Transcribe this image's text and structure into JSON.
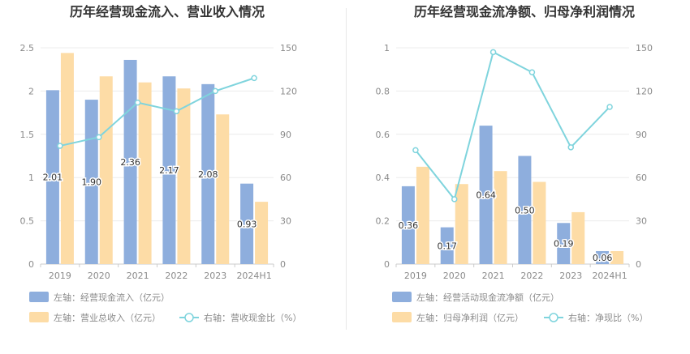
{
  "chart_data": [
    {
      "type": "bar",
      "title": "历年经营现金流入、营业收入情况",
      "categories": [
        "2019",
        "2020",
        "2021",
        "2022",
        "2023",
        "2024H1"
      ],
      "series": [
        {
          "name": "左轴：经营现金流入（亿元）",
          "axis": "left",
          "kind": "bar",
          "values": [
            2.01,
            1.9,
            2.36,
            2.17,
            2.08,
            0.93
          ],
          "data_labels": [
            "2.01",
            "1.90",
            "2.36",
            "2.17",
            "2.08",
            "0.93"
          ]
        },
        {
          "name": "左轴：营业总收入（亿元）",
          "axis": "left",
          "kind": "bar",
          "values": [
            2.44,
            2.17,
            2.1,
            2.03,
            1.73,
            0.72
          ]
        },
        {
          "name": "右轴：营收现金比（%）",
          "axis": "right",
          "kind": "line",
          "values": [
            82,
            88,
            112,
            106,
            120,
            129
          ]
        }
      ],
      "left_axis": {
        "ylim": [
          0,
          2.5
        ],
        "ticks": [
          "0",
          "0.5",
          "1",
          "1.5",
          "2",
          "2.5"
        ]
      },
      "right_axis": {
        "ylim": [
          0,
          150
        ],
        "ticks": [
          "0",
          "30",
          "60",
          "90",
          "120",
          "150"
        ]
      },
      "grid": true,
      "legend_position": "bottom",
      "colors": {
        "bar1": "#8eaedd",
        "bar2": "#fddca6",
        "line": "#7fd4dd"
      }
    },
    {
      "type": "bar",
      "title": "历年经营现金流净额、归母净利润情况",
      "categories": [
        "2019",
        "2020",
        "2021",
        "2022",
        "2023",
        "2024H1"
      ],
      "series": [
        {
          "name": "左轴：经营活动现金流净额（亿元）",
          "axis": "left",
          "kind": "bar",
          "values": [
            0.36,
            0.17,
            0.64,
            0.5,
            0.19,
            0.06
          ],
          "data_labels": [
            "0.36",
            "0.17",
            "0.64",
            "0.50",
            "0.19",
            "0.06"
          ]
        },
        {
          "name": "左轴：归母净利润（亿元）",
          "axis": "left",
          "kind": "bar",
          "values": [
            0.45,
            0.37,
            0.43,
            0.38,
            0.24,
            0.06
          ]
        },
        {
          "name": "右轴：净现比（%）",
          "axis": "right",
          "kind": "line",
          "values": [
            79,
            45,
            147,
            133,
            81,
            109
          ]
        }
      ],
      "left_axis": {
        "ylim": [
          0,
          1
        ],
        "ticks": [
          "0",
          "0.2",
          "0.4",
          "0.6",
          "0.8",
          "1"
        ]
      },
      "right_axis": {
        "ylim": [
          0,
          150
        ],
        "ticks": [
          "0",
          "30",
          "60",
          "90",
          "120",
          "150"
        ]
      },
      "grid": true,
      "legend_position": "bottom",
      "colors": {
        "bar1": "#8eaedd",
        "bar2": "#fddca6",
        "line": "#7fd4dd"
      }
    }
  ]
}
